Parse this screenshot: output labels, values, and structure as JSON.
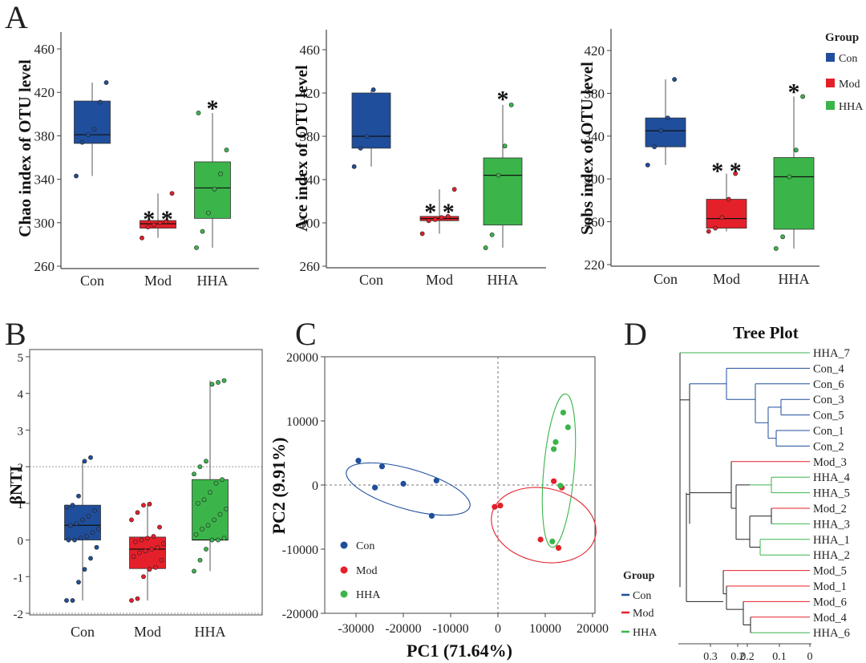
{
  "colors": {
    "con": "#1f4e9c",
    "mod": "#e4202a",
    "hha": "#3bb54a",
    "axis": "#333333",
    "grid": "#888888"
  },
  "panel_letters": {
    "a": "A",
    "b": "B",
    "c": "C",
    "d": "D"
  },
  "group_legend": {
    "title": "Group",
    "items": [
      "Con",
      "Mod",
      "HHA"
    ]
  },
  "pca_legend": {
    "items": [
      "Con",
      "Mod",
      "HHA"
    ]
  },
  "tree_legend": {
    "title": "Group",
    "items": [
      "Con",
      "Mod",
      "HHA"
    ]
  },
  "chart_data": [
    {
      "id": "chao",
      "type": "box",
      "ylabel": "Chao index of OTU level",
      "categories": [
        "Con",
        "Mod",
        "HHA"
      ],
      "yticks": [
        "260",
        "300",
        "340",
        "380",
        "420",
        "460"
      ],
      "ylim": [
        260,
        480
      ],
      "boxes": [
        {
          "group": "Con",
          "min": 343,
          "q1": 373,
          "median": 381,
          "q3": 412,
          "max": 429,
          "points": [
            343,
            374,
            381,
            386,
            411,
            429
          ]
        },
        {
          "group": "Mod",
          "min": 286,
          "q1": 295,
          "median": 299,
          "q3": 302,
          "max": 327,
          "points": [
            286,
            296,
            298,
            300,
            301,
            327
          ]
        },
        {
          "group": "HHA",
          "min": 277,
          "q1": 304,
          "median": 332,
          "q3": 356,
          "max": 401,
          "points": [
            277,
            292,
            309,
            331,
            345,
            367,
            401
          ]
        }
      ],
      "annotations": [
        {
          "group": "Mod",
          "text": "* *",
          "y": 305
        },
        {
          "group": "HHA",
          "text": "*",
          "y": 407
        }
      ]
    },
    {
      "id": "ace",
      "type": "box",
      "ylabel": "Ace index of OTU level",
      "categories": [
        "Con",
        "Mod",
        "HHA"
      ],
      "yticks": [
        "260",
        "300",
        "340",
        "380",
        "420",
        "460"
      ],
      "ylim": [
        260,
        480
      ],
      "boxes": [
        {
          "group": "Con",
          "min": 352,
          "q1": 369,
          "median": 380,
          "q3": 420,
          "max": 423,
          "points": [
            352,
            369,
            380,
            423
          ]
        },
        {
          "group": "Mod",
          "min": 290,
          "q1": 302,
          "median": 304,
          "q3": 306,
          "max": 331,
          "points": [
            290,
            302,
            303,
            305,
            306,
            331
          ]
        },
        {
          "group": "HHA",
          "min": 277,
          "q1": 298,
          "median": 344,
          "q3": 360,
          "max": 409,
          "points": [
            277,
            289,
            344,
            371,
            409
          ]
        }
      ],
      "annotations": [
        {
          "group": "Mod",
          "text": "* *",
          "y": 312
        },
        {
          "group": "HHA",
          "text": "*",
          "y": 416
        }
      ]
    },
    {
      "id": "sobs",
      "type": "box",
      "ylabel": "Sobs index of OTU level",
      "categories": [
        "Con",
        "Mod",
        "HHA"
      ],
      "yticks": [
        "220",
        "260",
        "300",
        "340",
        "380",
        "420"
      ],
      "ylim": [
        220,
        440
      ],
      "boxes": [
        {
          "group": "Con",
          "min": 313,
          "q1": 330,
          "median": 345,
          "q3": 357,
          "max": 393,
          "points": [
            313,
            330,
            345,
            357,
            393
          ]
        },
        {
          "group": "Mod",
          "min": 251,
          "q1": 254,
          "median": 263,
          "q3": 281,
          "max": 305,
          "points": [
            251,
            254,
            264,
            281,
            305
          ]
        },
        {
          "group": "HHA",
          "min": 235,
          "q1": 253,
          "median": 302,
          "q3": 320,
          "max": 377,
          "points": [
            235,
            246,
            302,
            327,
            377
          ]
        }
      ],
      "annotations": [
        {
          "group": "Mod",
          "text": "* *",
          "y": 309
        },
        {
          "group": "HHA",
          "text": "*",
          "y": 383
        }
      ]
    },
    {
      "id": "bnti",
      "type": "box",
      "ylabel": "βNTI",
      "categories": [
        "Con",
        "Mod",
        "HHA"
      ],
      "yticks": [
        "-2",
        "-1",
        "0",
        "1",
        "2",
        "3",
        "4",
        "5"
      ],
      "ylim": [
        -2,
        5
      ],
      "reference_lines": [
        2,
        -2
      ],
      "boxes": [
        {
          "group": "Con",
          "min": -1.65,
          "q1": 0.0,
          "median": 0.4,
          "q3": 0.95,
          "max": 2.15,
          "points": [
            -1.65,
            -1.65,
            -1.15,
            -0.8,
            -0.5,
            -0.2,
            0.0,
            0.0,
            0.05,
            0.1,
            0.2,
            0.3,
            0.4,
            0.45,
            0.55,
            0.65,
            0.8,
            0.9,
            0.95,
            1.2,
            2.15,
            2.25
          ]
        },
        {
          "group": "Mod",
          "min": -1.65,
          "q1": -0.78,
          "median": -0.25,
          "q3": 0.08,
          "max": 0.98,
          "points": [
            -1.65,
            -1.6,
            -1.0,
            -0.8,
            -0.75,
            -0.55,
            -0.45,
            -0.35,
            -0.3,
            -0.25,
            -0.2,
            -0.1,
            -0.05,
            0.0,
            0.05,
            0.1,
            0.35,
            0.55,
            0.75,
            0.95,
            0.98
          ]
        },
        {
          "group": "HHA",
          "min": -0.85,
          "q1": 0.0,
          "median": 0.0,
          "q3": 1.65,
          "max": 4.35,
          "points": [
            -0.85,
            -0.55,
            -0.25,
            0.0,
            0.0,
            0.05,
            0.15,
            0.3,
            0.4,
            0.55,
            0.7,
            0.85,
            1.0,
            1.1,
            1.3,
            1.55,
            1.65,
            1.8,
            2.0,
            2.15,
            4.25,
            4.3,
            4.35
          ]
        }
      ]
    },
    {
      "id": "pca",
      "type": "scatter",
      "xlabel": "PC1 (71.64%)",
      "ylabel": "PC2 (9.91%)",
      "xticks": [
        "-30000",
        "-20000",
        "-10000",
        "0",
        "10000",
        "20000"
      ],
      "yticks": [
        "-20000",
        "-10000",
        "0",
        "10000",
        "20000"
      ],
      "xlim": [
        -36000,
        21000
      ],
      "ylim": [
        -20000,
        20000
      ],
      "series": [
        {
          "name": "Con",
          "points": [
            [
              -29500,
              3800
            ],
            [
              -24500,
              2900
            ],
            [
              -20000,
              200
            ],
            [
              -26000,
              -400
            ],
            [
              -13000,
              700
            ],
            [
              -14000,
              -4800
            ]
          ]
        },
        {
          "name": "Mod",
          "points": [
            [
              -700,
              -3400
            ],
            [
              500,
              -3200
            ],
            [
              9000,
              -8500
            ],
            [
              11800,
              600
            ],
            [
              13500,
              -400
            ],
            [
              12800,
              -9800
            ]
          ]
        },
        {
          "name": "HHA",
          "points": [
            [
              11500,
              -8800
            ],
            [
              11800,
              5600
            ],
            [
              12200,
              6700
            ],
            [
              13200,
              -100
            ],
            [
              13800,
              11300
            ],
            [
              14800,
              9000
            ]
          ]
        }
      ]
    },
    {
      "id": "tree",
      "type": "dendrogram",
      "title": "Tree Plot",
      "xticks": [
        "0.3",
        "0.2",
        "0.2",
        "0.1",
        "0"
      ],
      "leaves": [
        "HHA_7",
        "Con_4",
        "Con_6",
        "Con_3",
        "Con_5",
        "Con_1",
        "Con_2",
        "Mod_3",
        "HHA_4",
        "HHA_5",
        "Mod_2",
        "HHA_3",
        "HHA_1",
        "HHA_2",
        "Mod_5",
        "Mod_1",
        "Mod_6",
        "Mod_4",
        "HHA_6"
      ]
    }
  ]
}
